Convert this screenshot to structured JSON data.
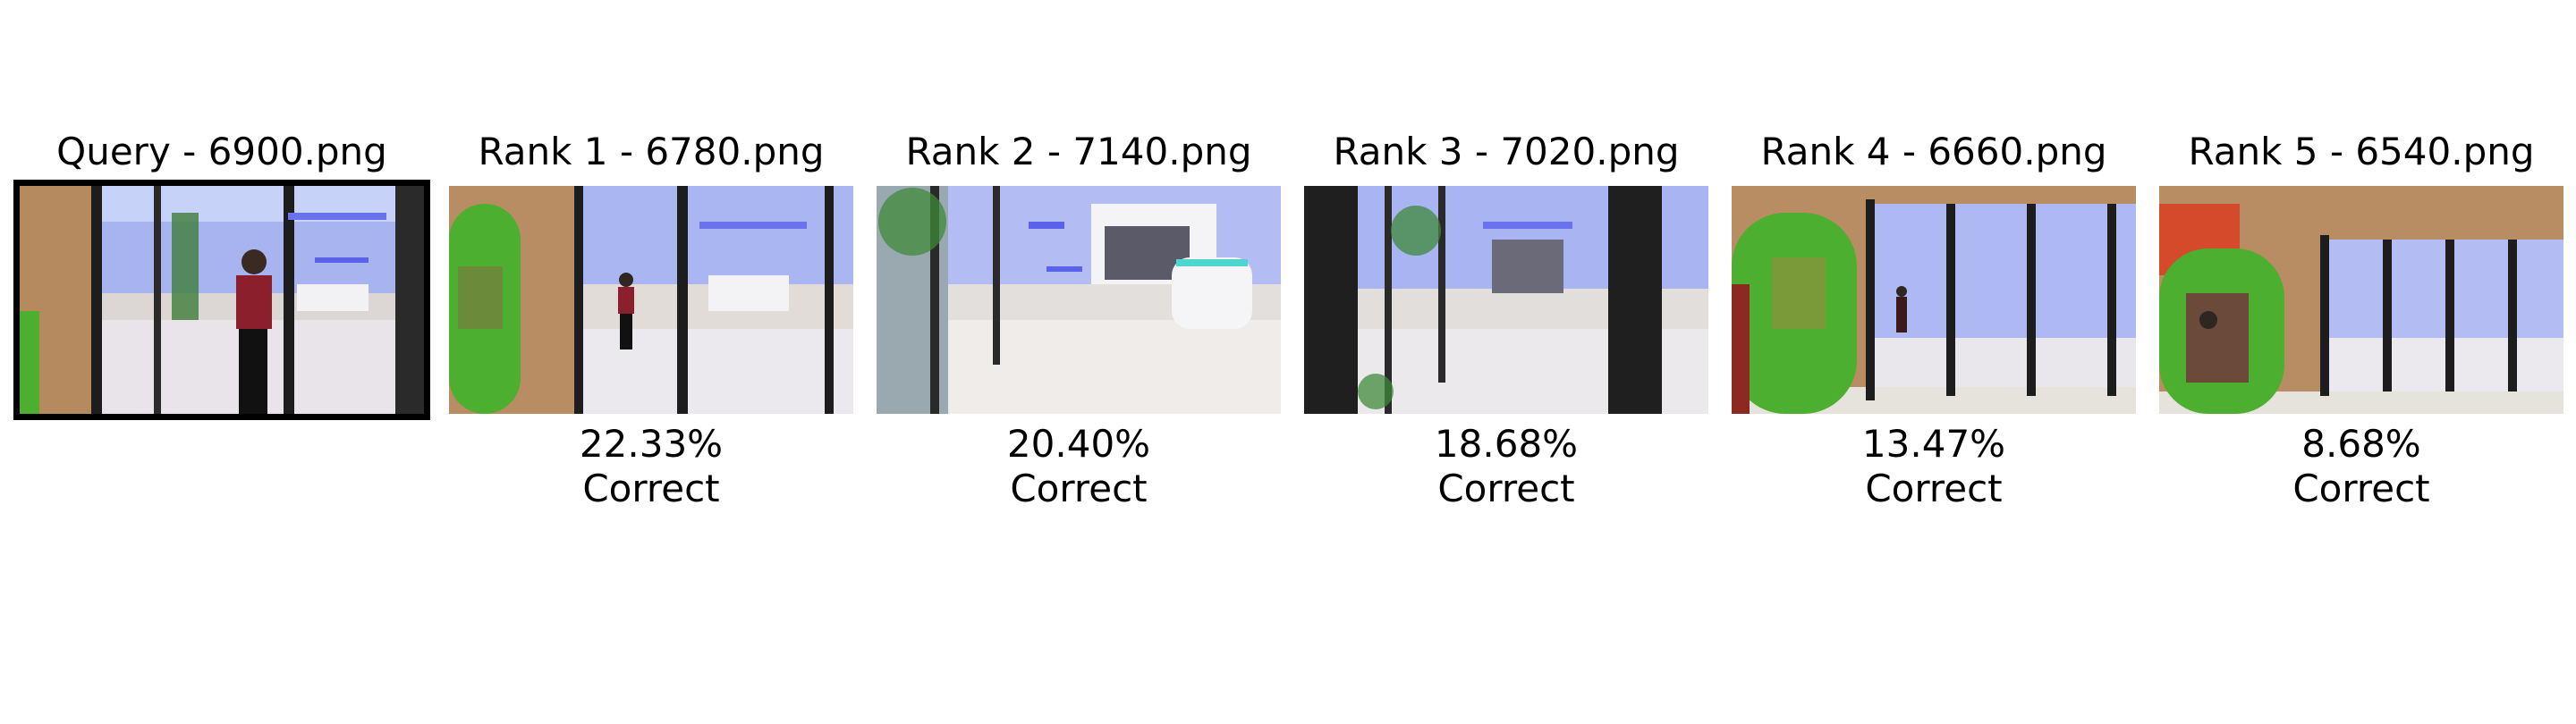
{
  "query": {
    "title": "Query - 6900.png"
  },
  "results": [
    {
      "title": "Rank 1 - 6780.png",
      "score": "22.33%",
      "verdict": "Correct"
    },
    {
      "title": "Rank 2 - 7140.png",
      "score": "20.40%",
      "verdict": "Correct"
    },
    {
      "title": "Rank 3 - 7020.png",
      "score": "18.68%",
      "verdict": "Correct"
    },
    {
      "title": "Rank 4 - 6660.png",
      "score": "13.47%",
      "verdict": "Correct"
    },
    {
      "title": "Rank 5 - 6540.png",
      "score": "8.68%",
      "verdict": "Correct"
    }
  ],
  "colors": {
    "query_border": "#000000",
    "wall_wood": "#b98d63",
    "ceiling_blue": "#7d86f2",
    "floor": "#e6e1dc",
    "green_booth": "#4caf2f"
  }
}
